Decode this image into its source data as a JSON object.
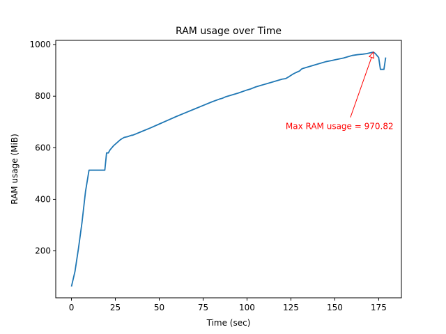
{
  "chart_data": {
    "type": "line",
    "title": "RAM usage over Time",
    "xlabel": "Time (sec)",
    "ylabel": "RAM usage (MiB)",
    "xlim": [
      -8.95,
      187.95
    ],
    "ylim": [
      18.0,
      1016.5
    ],
    "xticks": [
      0,
      25,
      50,
      75,
      100,
      125,
      150,
      175
    ],
    "yticks": [
      200,
      400,
      600,
      800,
      1000
    ],
    "grid": false,
    "legend": "none",
    "series": [
      {
        "color": "#1f77b4",
        "x": [
          0,
          2,
          4,
          6,
          8,
          10,
          12,
          14,
          16,
          18,
          19,
          20,
          21,
          22,
          24,
          26,
          28,
          30,
          32,
          34,
          35,
          40,
          45,
          50,
          55,
          60,
          65,
          70,
          75,
          80,
          84,
          86,
          88,
          90,
          95,
          100,
          102,
          105,
          108,
          110,
          115,
          118,
          120,
          122,
          124,
          126,
          128,
          130,
          131,
          132,
          134,
          136,
          138,
          140,
          145,
          148,
          150,
          155,
          158,
          160,
          163,
          166,
          168,
          170,
          172,
          173,
          175,
          176,
          178,
          179
        ],
        "y": [
          62,
          120,
          210,
          310,
          430,
          513,
          513,
          513,
          513,
          513,
          513,
          580,
          580,
          592,
          608,
          620,
          632,
          640,
          643,
          648,
          649,
          663,
          677,
          692,
          707,
          722,
          736,
          750,
          764,
          778,
          788,
          792,
          798,
          802,
          812,
          824,
          828,
          836,
          842,
          846,
          856,
          862,
          866,
          868,
          876,
          885,
          892,
          898,
          905,
          908,
          912,
          916,
          920,
          924,
          934,
          938,
          941,
          948,
          954,
          958,
          961,
          963,
          965,
          968,
          970.82,
          966,
          950,
          904,
          904,
          950
        ]
      }
    ],
    "annotation": {
      "text": "Max RAM usage = 970.82",
      "point": [
        172,
        970.82
      ],
      "text_pos": [
        122,
        672
      ],
      "color": "#ff0000"
    }
  }
}
